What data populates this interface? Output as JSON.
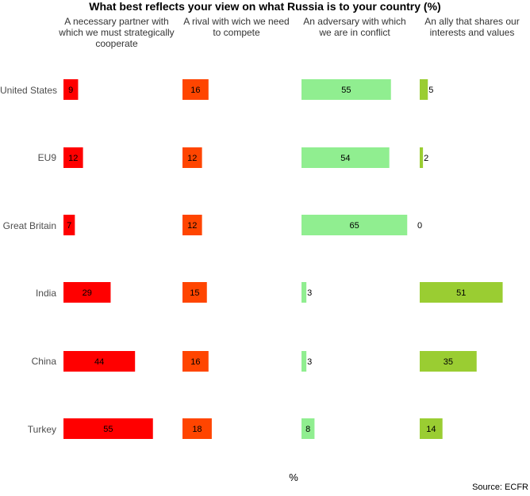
{
  "chart_data": {
    "type": "bar",
    "title": "What best reflects your view on what Russia is to your country (%)",
    "xlabel": "%",
    "source": "Source: ECFR",
    "categories": [
      "United States",
      "EU9",
      "Great Britain",
      "India",
      "China",
      "Turkey"
    ],
    "xlim": [
      0,
      65
    ],
    "grid": false,
    "series": [
      {
        "name": "A necessary partner with which we must strategically cooperate",
        "color": "#ff0000",
        "values": [
          9,
          12,
          7,
          29,
          44,
          55
        ]
      },
      {
        "name": "A rival with wich we need to compete",
        "color": "#ff4500",
        "values": [
          16,
          12,
          12,
          15,
          16,
          18
        ]
      },
      {
        "name": "An adversary with which we are in conflict",
        "color": "#90ee90",
        "values": [
          55,
          54,
          65,
          3,
          3,
          8
        ]
      },
      {
        "name": "An ally that shares our interests and values",
        "color": "#9acd32",
        "values": [
          5,
          2,
          0,
          51,
          35,
          14
        ]
      }
    ]
  }
}
